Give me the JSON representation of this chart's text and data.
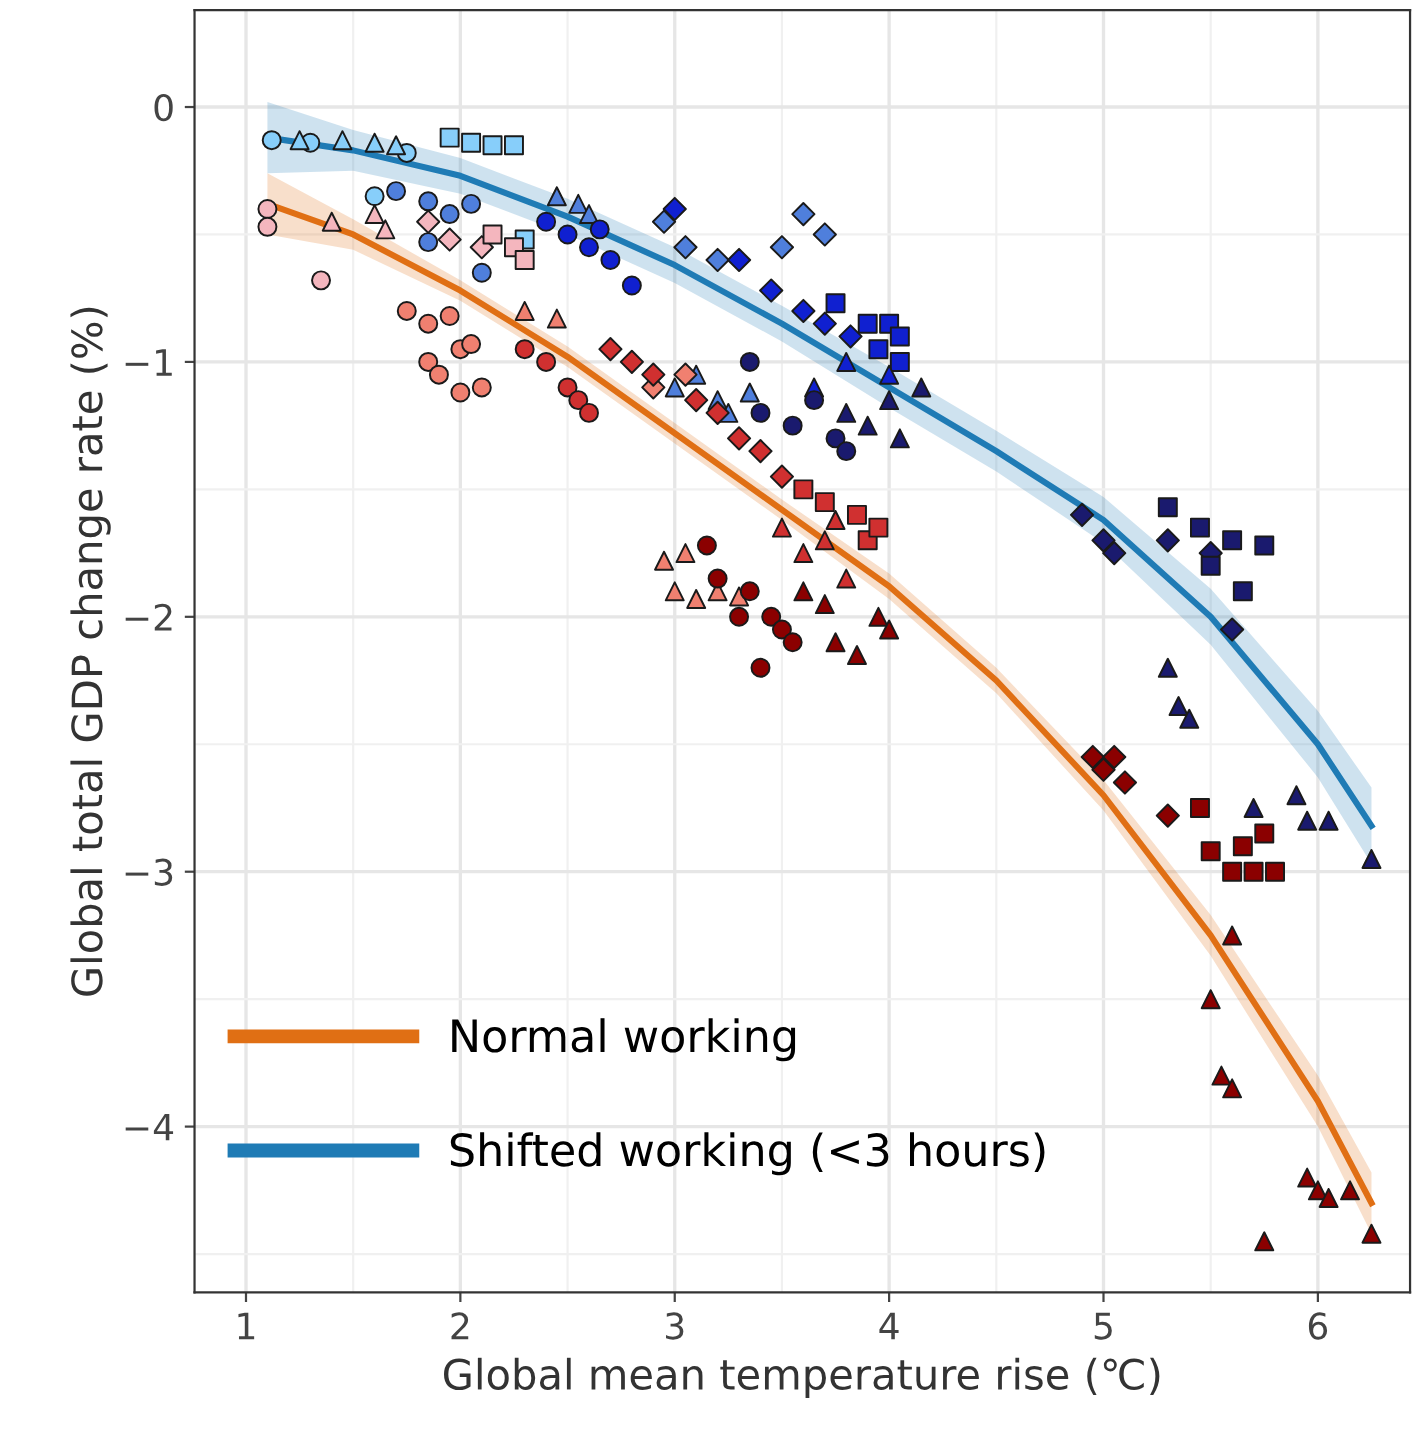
{
  "chart_data": {
    "type": "scatter",
    "xlabel": "Global mean temperature rise (℃)",
    "ylabel": "Global total GDP change rate (%)",
    "xlim": [
      0.76,
      6.43
    ],
    "ylim": [
      -4.65,
      0.38
    ],
    "xticks": [
      1,
      2,
      3,
      4,
      5,
      6
    ],
    "yticks": [
      0,
      -1,
      -2,
      -3,
      -4
    ],
    "grid": true,
    "legend": "bottom left",
    "series": [
      {
        "color": "#87cefa",
        "marker": "circle",
        "x": [
          1.12,
          1.3,
          1.6,
          1.75
        ],
        "values": [
          -0.13,
          -0.14,
          -0.35,
          -0.18
        ]
      },
      {
        "color": "#87cefa",
        "marker": "triangle",
        "x": [
          1.25,
          1.45,
          1.6,
          1.7
        ],
        "values": [
          -0.13,
          -0.13,
          -0.14,
          -0.15
        ]
      },
      {
        "color": "#87cefa",
        "marker": "square",
        "x": [
          1.95,
          2.05,
          2.15,
          2.25,
          2.3
        ],
        "values": [
          -0.12,
          -0.14,
          -0.15,
          -0.15,
          -0.52
        ]
      },
      {
        "color": "#4f7fdc",
        "marker": "circle",
        "x": [
          1.7,
          1.85,
          1.95,
          2.05,
          1.85,
          2.1
        ],
        "values": [
          -0.33,
          -0.37,
          -0.42,
          -0.38,
          -0.53,
          -0.65
        ]
      },
      {
        "color": "#4f7fdc",
        "marker": "triangle",
        "x": [
          2.45,
          2.55,
          2.6
        ],
        "values": [
          -0.35,
          -0.38,
          -0.42
        ]
      },
      {
        "color": "#4f7fdc",
        "marker": "triangle",
        "x": [
          3.0,
          3.1,
          3.2,
          3.25,
          3.35
        ],
        "values": [
          -1.1,
          -1.05,
          -1.15,
          -1.2,
          -1.12
        ]
      },
      {
        "color": "#4f7fdc",
        "marker": "diamond",
        "x": [
          2.95,
          3.05,
          3.2,
          3.5,
          3.6,
          3.7
        ],
        "values": [
          -0.45,
          -0.55,
          -0.6,
          -0.55,
          -0.42,
          -0.5
        ]
      },
      {
        "color": "#1020d0",
        "marker": "circle",
        "x": [
          2.4,
          2.5,
          2.6,
          2.7,
          2.65,
          2.8
        ],
        "values": [
          -0.45,
          -0.5,
          -0.55,
          -0.6,
          -0.48,
          -0.7
        ]
      },
      {
        "color": "#1020d0",
        "marker": "diamond",
        "x": [
          3.0,
          3.3,
          3.45,
          3.6,
          3.7,
          3.82
        ],
        "values": [
          -0.4,
          -0.6,
          -0.72,
          -0.8,
          -0.85,
          -0.9
        ]
      },
      {
        "color": "#1020d0",
        "marker": "square",
        "x": [
          3.75,
          3.9,
          3.95,
          4.0,
          4.05,
          4.05
        ],
        "values": [
          -0.77,
          -0.85,
          -0.95,
          -0.85,
          -0.9,
          -1.0
        ]
      },
      {
        "color": "#1020d0",
        "marker": "triangle",
        "x": [
          3.8,
          4.0,
          3.65
        ],
        "values": [
          -1.0,
          -1.05,
          -1.1
        ]
      },
      {
        "color": "#1a1a6e",
        "marker": "circle",
        "x": [
          3.35,
          3.4,
          3.55,
          3.65,
          3.75,
          3.8
        ],
        "values": [
          -1.0,
          -1.2,
          -1.25,
          -1.15,
          -1.3,
          -1.35
        ]
      },
      {
        "color": "#1a1a6e",
        "marker": "triangle",
        "x": [
          3.8,
          3.9,
          4.0,
          4.05,
          4.15
        ],
        "values": [
          -1.2,
          -1.25,
          -1.15,
          -1.3,
          -1.1
        ]
      },
      {
        "color": "#1a1a6e",
        "marker": "diamond",
        "x": [
          4.9,
          5.0,
          5.05,
          5.3,
          5.5,
          5.6
        ],
        "values": [
          -1.6,
          -1.7,
          -1.75,
          -1.7,
          -1.75,
          -2.05
        ]
      },
      {
        "color": "#1a1a6e",
        "marker": "square",
        "x": [
          5.3,
          5.45,
          5.5,
          5.6,
          5.75,
          5.65
        ],
        "values": [
          -1.57,
          -1.65,
          -1.8,
          -1.7,
          -1.72,
          -1.9
        ]
      },
      {
        "color": "#1a1a6e",
        "marker": "triangle",
        "x": [
          5.3,
          5.35,
          5.4,
          5.7,
          5.9,
          5.95,
          6.05,
          6.25
        ],
        "values": [
          -2.2,
          -2.35,
          -2.4,
          -2.75,
          -2.7,
          -2.8,
          -2.8,
          -2.95
        ]
      },
      {
        "color": "#f4b6be",
        "marker": "circle",
        "x": [
          1.1,
          1.1,
          1.35
        ],
        "values": [
          -0.4,
          -0.47,
          -0.68
        ]
      },
      {
        "color": "#f4b6be",
        "marker": "triangle",
        "x": [
          1.4,
          1.6,
          1.65
        ],
        "values": [
          -0.45,
          -0.42,
          -0.48
        ]
      },
      {
        "color": "#f4b6be",
        "marker": "diamond",
        "x": [
          1.85,
          1.95,
          2.1
        ],
        "values": [
          -0.45,
          -0.52,
          -0.55
        ]
      },
      {
        "color": "#f4b6be",
        "marker": "square",
        "x": [
          2.15,
          2.25,
          2.3
        ],
        "values": [
          -0.5,
          -0.55,
          -0.6
        ]
      },
      {
        "color": "#f08070",
        "marker": "circle",
        "x": [
          1.75,
          1.85,
          1.95,
          2.0,
          1.85,
          1.9,
          2.05,
          2.0,
          2.1
        ],
        "values": [
          -0.8,
          -0.85,
          -0.82,
          -0.95,
          -1.0,
          -1.05,
          -0.93,
          -1.12,
          -1.1
        ]
      },
      {
        "color": "#f08070",
        "marker": "triangle",
        "x": [
          2.3,
          2.45
        ],
        "values": [
          -0.8,
          -0.83
        ]
      },
      {
        "color": "#f08070",
        "marker": "triangle",
        "x": [
          2.95,
          3.05,
          3.0,
          3.1,
          3.2,
          3.3
        ],
        "values": [
          -1.78,
          -1.75,
          -1.9,
          -1.93,
          -1.9,
          -1.92
        ]
      },
      {
        "color": "#f08070",
        "marker": "diamond",
        "x": [
          2.9,
          3.05
        ],
        "values": [
          -1.1,
          -1.05
        ]
      },
      {
        "color": "#d03030",
        "marker": "circle",
        "x": [
          2.3,
          2.4,
          2.5,
          2.55,
          2.6
        ],
        "values": [
          -0.95,
          -1.0,
          -1.1,
          -1.15,
          -1.2
        ]
      },
      {
        "color": "#d03030",
        "marker": "diamond",
        "x": [
          2.7,
          2.8,
          2.9,
          3.1,
          3.2,
          3.3,
          3.4,
          3.5
        ],
        "values": [
          -0.95,
          -1.0,
          -1.05,
          -1.15,
          -1.2,
          -1.3,
          -1.35,
          -1.45
        ]
      },
      {
        "color": "#d03030",
        "marker": "square",
        "x": [
          3.6,
          3.7,
          3.85,
          3.9,
          3.95
        ],
        "values": [
          -1.5,
          -1.55,
          -1.6,
          -1.7,
          -1.65
        ]
      },
      {
        "color": "#d03030",
        "marker": "triangle",
        "x": [
          3.5,
          3.6,
          3.7,
          3.75,
          3.8
        ],
        "values": [
          -1.65,
          -1.75,
          -1.7,
          -1.62,
          -1.85
        ]
      },
      {
        "color": "#8b0000",
        "marker": "circle",
        "x": [
          3.15,
          3.2,
          3.35,
          3.45,
          3.5,
          3.55,
          3.4,
          3.3
        ],
        "values": [
          -1.72,
          -1.85,
          -1.9,
          -2.0,
          -2.05,
          -2.1,
          -2.2,
          -2.0
        ]
      },
      {
        "color": "#8b0000",
        "marker": "triangle",
        "x": [
          3.6,
          3.7,
          3.75,
          3.85,
          3.95,
          4.0
        ],
        "values": [
          -1.9,
          -1.95,
          -2.1,
          -2.15,
          -2.0,
          -2.05
        ]
      },
      {
        "color": "#8b0000",
        "marker": "diamond",
        "x": [
          4.95,
          5.0,
          5.05,
          5.1,
          5.3
        ],
        "values": [
          -2.55,
          -2.6,
          -2.55,
          -2.65,
          -2.78
        ]
      },
      {
        "color": "#8b0000",
        "marker": "square",
        "x": [
          5.45,
          5.5,
          5.6,
          5.65,
          5.7,
          5.75,
          5.8
        ],
        "values": [
          -2.75,
          -2.92,
          -3.0,
          -2.9,
          -3.0,
          -2.85,
          -3.0
        ]
      },
      {
        "color": "#8b0000",
        "marker": "triangle",
        "x": [
          5.6,
          5.5,
          5.55,
          5.6,
          5.95,
          6.0,
          6.05,
          6.15,
          5.75,
          6.25
        ],
        "values": [
          -3.25,
          -3.5,
          -3.8,
          -3.85,
          -4.2,
          -4.25,
          -4.28,
          -4.25,
          -4.45,
          -4.42
        ]
      },
      {
        "type": "line",
        "name": "Normal working",
        "color": "#e06f14",
        "marker": "none",
        "line_style": "solid",
        "x": [
          1.1,
          1.5,
          2,
          2.5,
          3,
          3.5,
          4,
          4.5,
          5,
          5.5,
          6,
          6.25
        ],
        "values": [
          -0.38,
          -0.5,
          -0.72,
          -0.98,
          -1.28,
          -1.58,
          -1.88,
          -2.25,
          -2.7,
          -3.25,
          -3.9,
          -4.3
        ],
        "lower": [
          -0.5,
          -0.56,
          -0.76,
          -1.02,
          -1.32,
          -1.62,
          -1.93,
          -2.3,
          -2.76,
          -3.33,
          -4.0,
          -4.42
        ],
        "upper": [
          -0.26,
          -0.44,
          -0.68,
          -0.94,
          -1.24,
          -1.54,
          -1.83,
          -2.2,
          -2.64,
          -3.17,
          -3.8,
          -4.18
        ]
      },
      {
        "type": "line",
        "name": "Shifted working (<3 hours)",
        "color": "#1f7bb5",
        "marker": "none",
        "line_style": "solid",
        "x": [
          1.1,
          1.5,
          2,
          2.5,
          3,
          3.5,
          4,
          4.5,
          5,
          5.5,
          6,
          6.25
        ],
        "values": [
          -0.12,
          -0.17,
          -0.27,
          -0.43,
          -0.62,
          -0.85,
          -1.1,
          -1.35,
          -1.62,
          -2.0,
          -2.5,
          -2.82
        ],
        "lower": [
          -0.26,
          -0.25,
          -0.34,
          -0.5,
          -0.69,
          -0.92,
          -1.18,
          -1.43,
          -1.71,
          -2.11,
          -2.63,
          -2.97
        ],
        "upper": [
          0.02,
          -0.09,
          -0.2,
          -0.36,
          -0.55,
          -0.78,
          -1.02,
          -1.27,
          -1.53,
          -1.89,
          -2.37,
          -2.67
        ]
      }
    ]
  }
}
